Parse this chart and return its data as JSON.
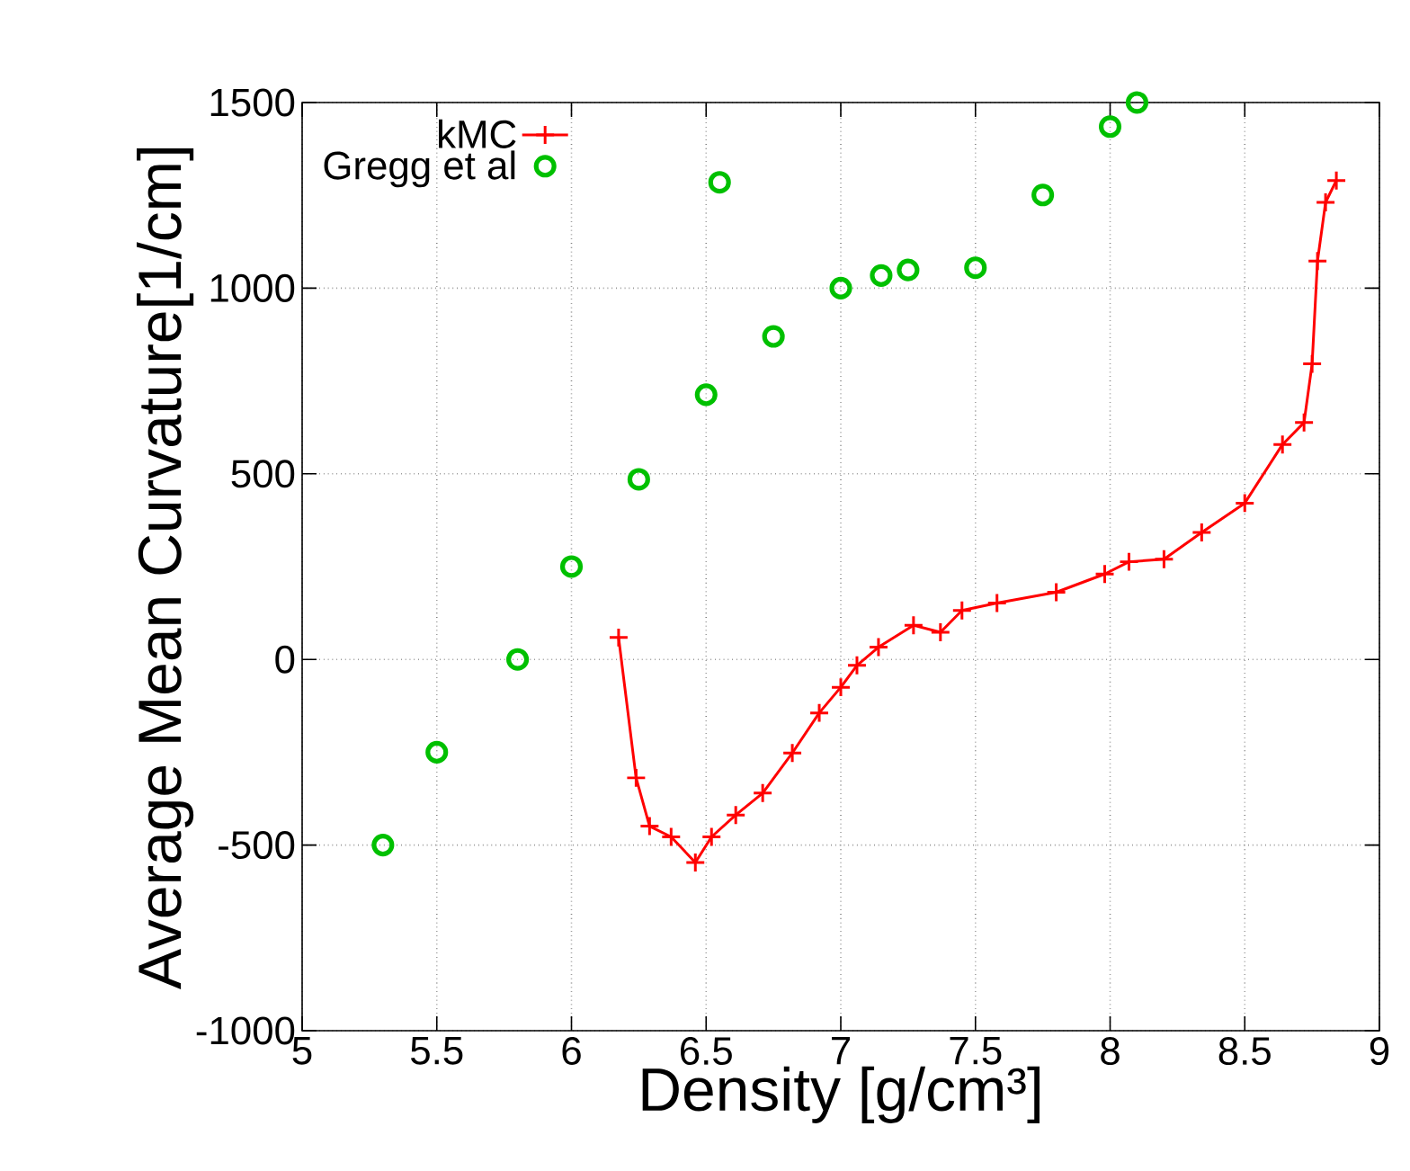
{
  "chart_data": {
    "type": "line",
    "xlabel": "Density [g/cm³]",
    "ylabel": "Average Mean Curvature[1/cm]",
    "xlim": [
      5,
      9
    ],
    "xticks": [
      5,
      5.5,
      6,
      6.5,
      7,
      7.5,
      8,
      8.5,
      9
    ],
    "ylim": [
      -1000,
      1500
    ],
    "yticks": [
      -1000,
      -500,
      0,
      500,
      1000,
      1500
    ],
    "grid": true,
    "legend": "top left",
    "series": [
      {
        "name": "kMC",
        "color": "#ff0000",
        "marker": "cross",
        "line_style": "solid",
        "x": [
          6.175,
          6.24,
          6.29,
          6.37,
          6.46,
          6.52,
          6.61,
          6.71,
          6.82,
          6.92,
          7.0,
          7.06,
          7.14,
          7.27,
          7.37,
          7.45,
          7.58,
          7.8,
          7.98,
          8.07,
          8.2,
          8.34,
          8.5,
          8.64,
          8.72,
          8.75,
          8.77,
          8.8,
          8.84
        ],
        "values": [
          59,
          -319,
          -449,
          -478,
          -547,
          -478,
          -419,
          -360,
          -252,
          -144,
          -75,
          -16,
          33,
          92,
          73,
          132,
          152,
          181,
          230,
          263,
          270,
          342,
          421,
          579,
          638,
          796,
          1073,
          1231,
          1290
        ]
      },
      {
        "name": "Gregg et al",
        "type": "scatter",
        "color": "#00c000",
        "marker": "circle",
        "x": [
          5.3,
          5.5,
          5.8,
          6.0,
          6.25,
          6.5,
          6.55,
          6.75,
          7.0,
          7.15,
          7.25,
          7.5,
          7.75,
          8.0,
          8.1
        ],
        "values": [
          -500,
          -250,
          0,
          250,
          485,
          713,
          1285,
          870,
          1000,
          1034,
          1049,
          1055,
          1251,
          1435,
          1500
        ]
      }
    ]
  }
}
